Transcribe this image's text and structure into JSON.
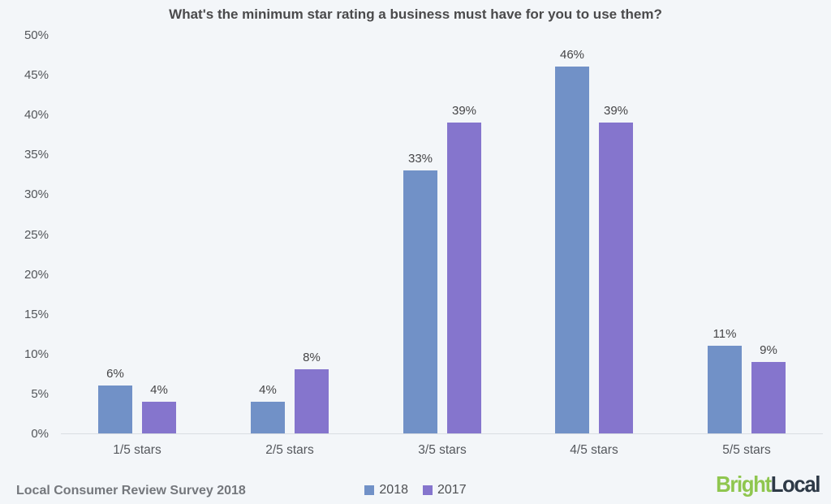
{
  "chart_data": {
    "type": "bar",
    "title": "What's the minimum star rating a business must have for you to use them?",
    "categories": [
      "1/5 stars",
      "2/5 stars",
      "3/5 stars",
      "4/5 stars",
      "5/5 stars"
    ],
    "series": [
      {
        "name": "2018",
        "color": "#7191c7",
        "values": [
          6,
          4,
          33,
          46,
          11
        ]
      },
      {
        "name": "2017",
        "color": "#8575cd",
        "values": [
          4,
          8,
          39,
          39,
          9
        ]
      }
    ],
    "value_labels": [
      [
        "6%",
        "4%",
        "33%",
        "46%",
        "11%"
      ],
      [
        "4%",
        "8%",
        "39%",
        "39%",
        "9%"
      ]
    ],
    "ylim": [
      0,
      50
    ],
    "ytick_step": 5,
    "ytick_labels": [
      "0%",
      "5%",
      "10%",
      "15%",
      "20%",
      "25%",
      "30%",
      "35%",
      "40%",
      "45%",
      "50%"
    ],
    "grid": false,
    "legend_position": "bottom-center"
  },
  "footer": {
    "source_label": "Local Consumer Review Survey 2018",
    "legend": [
      {
        "label": "2018",
        "color": "#7191c7"
      },
      {
        "label": "2017",
        "color": "#8575cd"
      }
    ],
    "logo": {
      "part1": "Bright",
      "part2": "Local",
      "part1_color": "#8fc64f",
      "part2_color": "#2e3a47"
    }
  },
  "colors": {
    "background": "#f3f6f9",
    "axis_line": "#d9dde2",
    "bar_2018": "#7191c7",
    "bar_2017": "#8575cd"
  }
}
